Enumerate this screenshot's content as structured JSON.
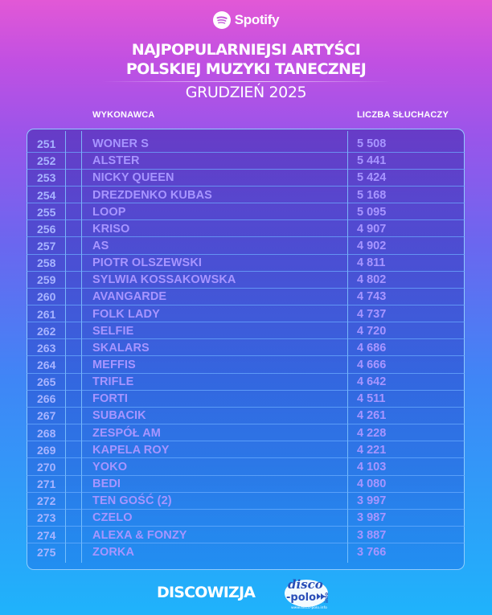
{
  "brand": {
    "name": "Spotify",
    "icon": "spotify-icon"
  },
  "title_lines": [
    "NAJPOPULARNIEJSI ARTYŚCI",
    "POLSKIEJ MUZYKI TANECZNEJ"
  ],
  "subtitle": "GRUDZIEŃ 2025",
  "columns": {
    "artist": "WYKONAWCA",
    "listeners": "LICZBA SŁUCHACZY"
  },
  "rows": [
    {
      "rank": "251",
      "artist": "WONER S",
      "listeners": "5 508"
    },
    {
      "rank": "252",
      "artist": "ALSTER",
      "listeners": "5 441"
    },
    {
      "rank": "253",
      "artist": "NICKY QUEEN",
      "listeners": "5 424"
    },
    {
      "rank": "254",
      "artist": "DREZDENKO KUBAS",
      "listeners": "5 168"
    },
    {
      "rank": "255",
      "artist": "LOOP",
      "listeners": "5 095"
    },
    {
      "rank": "256",
      "artist": "KRISO",
      "listeners": "4 907"
    },
    {
      "rank": "257",
      "artist": "AS",
      "listeners": "4 902"
    },
    {
      "rank": "258",
      "artist": "PIOTR OLSZEWSKI",
      "listeners": "4 811"
    },
    {
      "rank": "259",
      "artist": "SYLWIA KOSSAKOWSKA",
      "listeners": "4 802"
    },
    {
      "rank": "260",
      "artist": "AVANGARDE",
      "listeners": "4 743"
    },
    {
      "rank": "261",
      "artist": "FOLK LADY",
      "listeners": "4 737"
    },
    {
      "rank": "262",
      "artist": "SELFIE",
      "listeners": "4 720"
    },
    {
      "rank": "263",
      "artist": "SKALARS",
      "listeners": "4 686"
    },
    {
      "rank": "264",
      "artist": "MEFFIS",
      "listeners": "4 666"
    },
    {
      "rank": "265",
      "artist": "TRIFLE",
      "listeners": "4 642"
    },
    {
      "rank": "266",
      "artist": "FORTI",
      "listeners": "4 511"
    },
    {
      "rank": "267",
      "artist": "SUBACIK",
      "listeners": "4 261"
    },
    {
      "rank": "268",
      "artist": "ZESPÓŁ AM",
      "listeners": "4 228"
    },
    {
      "rank": "269",
      "artist": "KAPELA ROY",
      "listeners": "4 221"
    },
    {
      "rank": "270",
      "artist": "YOKO",
      "listeners": "4 103"
    },
    {
      "rank": "271",
      "artist": "BEDI",
      "listeners": "4 080"
    },
    {
      "rank": "272",
      "artist": "TEN GOŚĆ (2)",
      "listeners": "3 997"
    },
    {
      "rank": "273",
      "artist": "CZELO",
      "listeners": "3 987"
    },
    {
      "rank": "274",
      "artist": "ALEXA & FONZY",
      "listeners": "3 887"
    },
    {
      "rank": "275",
      "artist": "ZORKA",
      "listeners": "3 766"
    }
  ],
  "footer": {
    "brand": "DISCOWIZJA",
    "logo_top": "disco",
    "logo_bottom": "-polo",
    "logo_side": "info",
    "logo_url": "www.disco-polo.info"
  },
  "colors": {
    "row_text": "#a795ff",
    "rank_text": "#a8b4ff",
    "grid_lines": "#82c8ff"
  }
}
